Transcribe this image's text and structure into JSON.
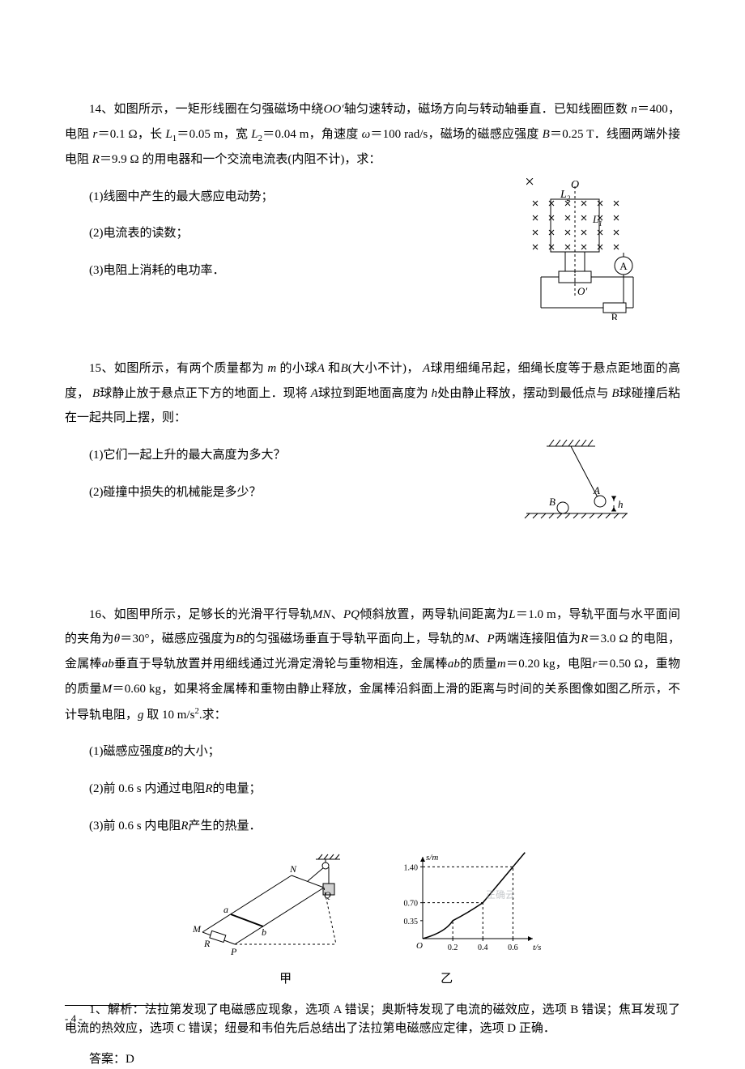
{
  "q14": {
    "num": "14、",
    "body_a": "如图所示，一矩形线圈在匀强磁场中绕",
    "oo": "OO′",
    "body_b": "轴匀速转动，磁场方向与转动轴垂直．已知线圈匝数",
    "n_sym": "n",
    "eq_n": "＝400，电阻",
    "r_sym": "r",
    "eq_r": "＝0.1 Ω，长",
    "L1_sym": "L",
    "L1_sub": "1",
    "eq_L1": "＝0.05 m，宽",
    "L2_sym": "L",
    "L2_sub": "2",
    "eq_L2": "＝0.04 m，角速度",
    "w_sym": "ω",
    "eq_w": "＝100 rad/s，磁场的磁感应强度",
    "B_sym": "B",
    "eq_B": "＝0.25 T．线圈两端外接电阻",
    "R_sym": "R",
    "eq_R": "＝9.9 Ω 的用电器和一个交流电流表(内阻不计)，求：",
    "s1": "(1)线圈中产生的最大感应电动势；",
    "s2": "(2)电流表的读数；",
    "s3": "(3)电阻上消耗的电功率．",
    "fig": {
      "O": "O",
      "Oprime": "O′",
      "A": "A",
      "R": "R",
      "L2": "L",
      "L2s": "2",
      "L1": "L",
      "L1s": "1",
      "colors": {
        "stroke": "#000000",
        "bg": "#ffffff"
      }
    }
  },
  "q15": {
    "num": "15、",
    "body_a": "如图所示，有两个质量都为",
    "m_sym": "m",
    "body_b": "的小球",
    "A_sym": "A",
    "body_c": "和",
    "B_sym": "B",
    "body_d": "(大小不计)，",
    "body_e": "球用细绳吊起，细绳长度等于悬点距地面的高度，",
    "body_f": "球静止放于悬点正下方的地面上．现将",
    "body_g": "球拉到距地面高度为",
    "h_sym": "h",
    "body_h": "处由静止释放，摆动到最低点与",
    "body_i": "球碰撞后粘在一起共同上摆，则：",
    "s1": "(1)它们一起上升的最大高度为多大？",
    "s2": "(2)碰撞中损失的机械能是多少？",
    "fig": {
      "A": "A",
      "B": "B",
      "h": "h",
      "stroke": "#000000"
    }
  },
  "q16": {
    "num": "16、",
    "body_a": "如图甲所示，足够长的光滑平行导轨",
    "MN_sym": "MN",
    "body_b": "、",
    "PQ_sym": "PQ",
    "body_c": "倾斜放置，两导轨间距离为",
    "L_sym": "L",
    "eq_L": "＝1.0 m，导轨平面与水平面间的夹角为",
    "th_sym": "θ",
    "eq_th": "＝30°，磁感应强度为",
    "B_sym": "B",
    "body_d": "的匀强磁场垂直于导轨平面向上，导轨的",
    "M_sym": "M",
    "P_sym": "P",
    "body_e": "两端连接阻值为",
    "R_sym": "R",
    "eq_R": "＝3.0 Ω 的电阻，金属棒",
    "ab_sym": "ab",
    "body_f": "垂直于导轨放置并用细线通过光滑定滑轮与重物相连，金属棒",
    "body_g": "的质量",
    "m_sym": "m",
    "eq_m": "＝0.20 kg，电阻",
    "r_sym": "r",
    "eq_r": "＝0.50 Ω，重物的质量",
    "Mcap_sym": "M",
    "eq_M": "＝0.60 kg，如果将金属棒和重物由静止释放，金属棒沿斜面上滑的距离与时间的关系图像如图乙所示，不计导轨电阻，",
    "g_sym": "g",
    "eq_g": " 取 10 m/s",
    "sq": "2",
    "body_h": ".求：",
    "s1": "(1)磁感应强度",
    "s1b": "的大小；",
    "s2": "(2)前 0.6 s 内通过电阻",
    "s2b": "的电量；",
    "s3": "(3)前 0.6 s 内电阻",
    "s3b": "产生的热量．",
    "graph": {
      "ylabel": "s/m",
      "xlabel": "t/s",
      "yticks": [
        "0.35",
        "0.70",
        "1.40"
      ],
      "xticks": [
        "0.2",
        "0.4",
        "0.6"
      ],
      "origin": "O",
      "points": [
        [
          0,
          0
        ],
        [
          0.2,
          0.35
        ],
        [
          0.4,
          0.7
        ],
        [
          0.6,
          1.4
        ]
      ],
      "line_color": "#000000",
      "axis_color": "#000000",
      "dash_color": "#000000",
      "bg": "#ffffff",
      "font_size": 10
    },
    "cap_a": "甲",
    "cap_b": "乙",
    "watermark": "正确云",
    "diagram": {
      "labels": {
        "N": "N",
        "Q": "Q",
        "M": "M",
        "P": "P",
        "R": "R",
        "a": "a",
        "b": "b"
      },
      "stroke": "#000000"
    }
  },
  "ans1": {
    "num": "1、",
    "body": "解析：法拉第发现了电磁感应现象，选项 A 错误；奥斯特发现了电流的磁效应，选项 B 错误；焦耳发现了电流的热效应，选项 C 错误；纽曼和韦伯先后总结出了法拉第电磁感应定律，选项 D 正确．",
    "ans": "答案：D"
  },
  "page": "- 4 -"
}
